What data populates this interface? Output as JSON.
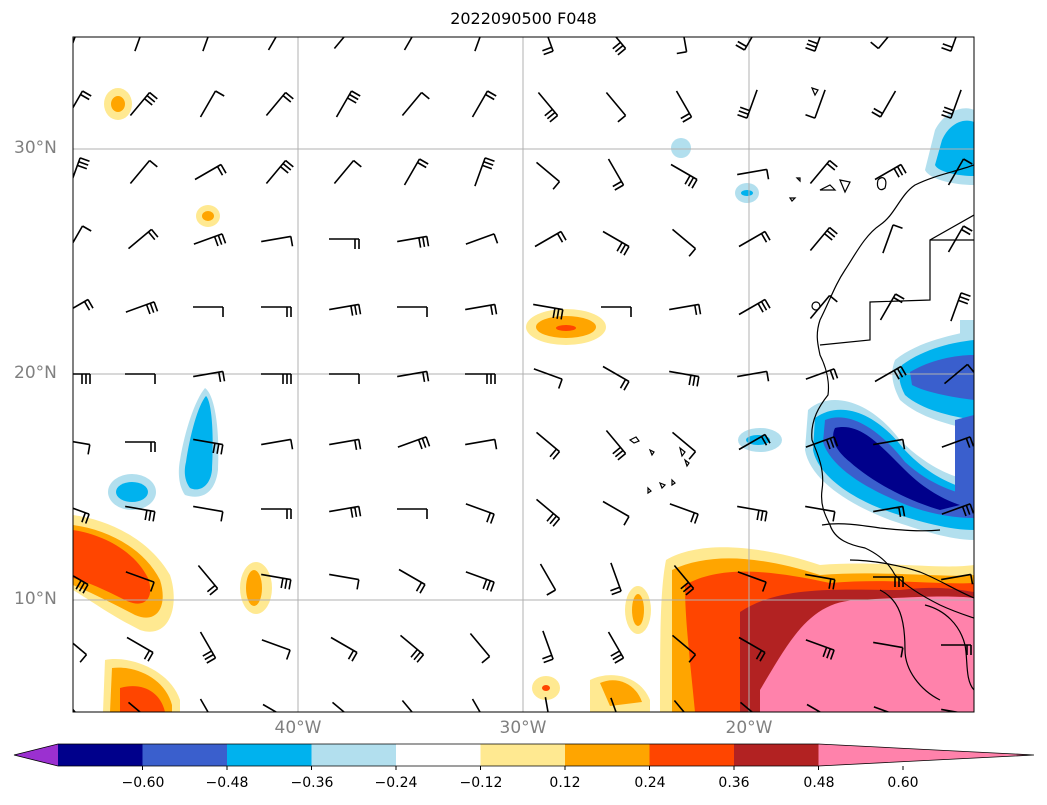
{
  "title": "2022090500 F048",
  "lat_labels": [
    "30°N",
    "20°N",
    "10°N"
  ],
  "lon_labels": [
    "40°W",
    "30°W",
    "20°W"
  ],
  "colorbar": {
    "levels": [
      "−0.60",
      "−0.48",
      "−0.36",
      "−0.24",
      "−0.12",
      "0.12",
      "0.24",
      "0.36",
      "0.48",
      "0.60"
    ],
    "colors": [
      "#9b30d0",
      "#00008b",
      "#3a5fcd",
      "#00b2ee",
      "#b2dfee",
      "#ffffff",
      "#ffe991",
      "#ffa500",
      "#ff4500",
      "#b22222",
      "#ff82ab"
    ]
  },
  "colors": {
    "grid": "#b0b0b0",
    "coast": "#000000",
    "barb": "#000000",
    "frame": "#000000"
  }
}
